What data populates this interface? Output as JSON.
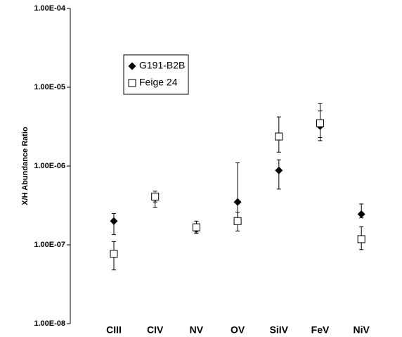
{
  "chart_data": {
    "type": "scatter",
    "y_label": "X/H Abundance Ratio",
    "categories": [
      "CIII",
      "CIV",
      "NV",
      "OV",
      "SiIV",
      "FeV",
      "NiV"
    ],
    "log_y": true,
    "ylim": [
      1e-08,
      0.0001
    ],
    "yticks": [
      {
        "value": 1e-08,
        "label": "1.00E-08"
      },
      {
        "value": 1e-07,
        "label": "1.00E-07"
      },
      {
        "value": 1e-06,
        "label": "1.00E-06"
      },
      {
        "value": 1e-05,
        "label": "1.00E-05"
      },
      {
        "value": 0.0001,
        "label": "1.00E-04"
      }
    ],
    "series": [
      {
        "name": "G191-B2B",
        "color": "#000000",
        "marker": "diamond",
        "values": [
          2e-07,
          4e-07,
          1.6e-07,
          3.5e-07,
          8.8e-07,
          3.2e-06,
          2.45e-07
        ],
        "lower": [
          1.35e-07,
          3.5e-07,
          1.45e-07,
          2e-07,
          5.1e-07,
          2.3e-06,
          2.2e-07
        ],
        "upper": [
          2.5e-07,
          4.5e-07,
          1.8e-07,
          1.1e-06,
          1.2e-06,
          5e-06,
          3.3e-07
        ]
      },
      {
        "name": "Feige 24",
        "color": "#000000",
        "marker": "square",
        "values": [
          7.7e-08,
          4.1e-07,
          1.67e-07,
          2e-07,
          2.37e-06,
          3.5e-06,
          1.18e-07
        ],
        "lower": [
          4.8e-08,
          3e-07,
          1.4e-07,
          1.5e-07,
          1.5e-06,
          2.1e-06,
          8.7e-08
        ],
        "upper": [
          1.1e-07,
          4.8e-07,
          2e-07,
          2.6e-07,
          4.2e-06,
          6.2e-06,
          1.7e-07
        ]
      }
    ]
  }
}
